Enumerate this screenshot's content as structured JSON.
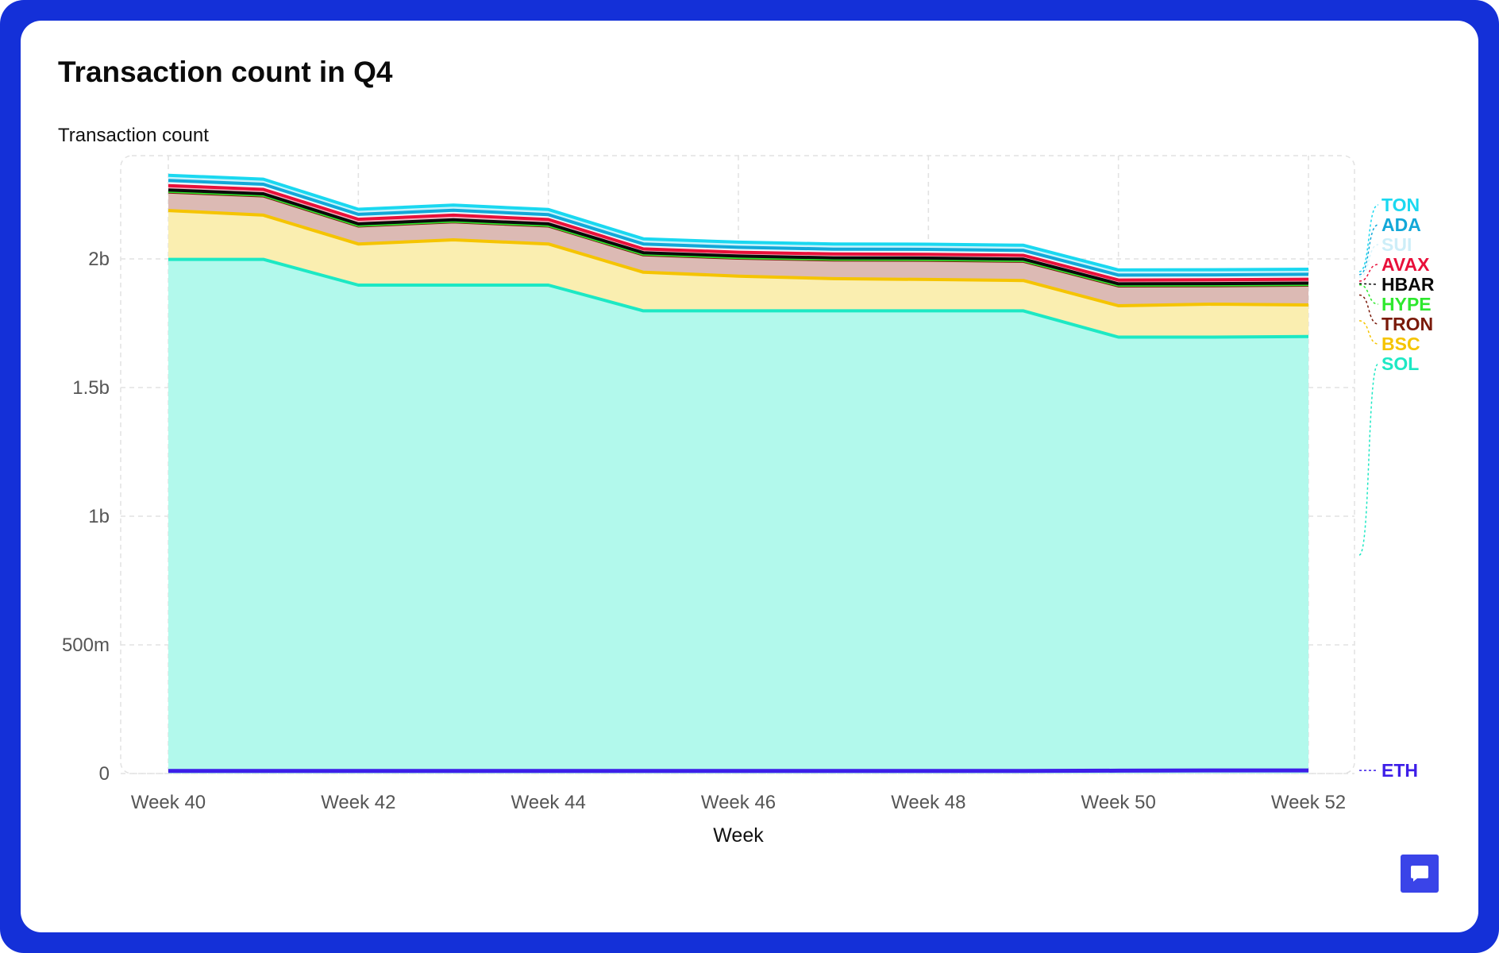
{
  "page": {
    "title": "Transaction count in Q4"
  },
  "chart_data": {
    "type": "area",
    "stacked": true,
    "title": "Transaction count in Q4",
    "xlabel": "Week",
    "ylabel": "Transaction count",
    "x": [
      "Week 40",
      "Week 41",
      "Week 42",
      "Week 43",
      "Week 44",
      "Week 45",
      "Week 46",
      "Week 47",
      "Week 48",
      "Week 49",
      "Week 50",
      "Week 51",
      "Week 52"
    ],
    "xticks": [
      "Week 40",
      "Week 42",
      "Week 44",
      "Week 46",
      "Week 48",
      "Week 50",
      "Week 52"
    ],
    "yticks": [
      {
        "value": 0,
        "label": "0"
      },
      {
        "value": 500000000,
        "label": "500m"
      },
      {
        "value": 1000000000,
        "label": "1b"
      },
      {
        "value": 1500000000,
        "label": "1.5b"
      },
      {
        "value": 2000000000,
        "label": "2b"
      }
    ],
    "ylim": [
      0,
      2400000000
    ],
    "grid": true,
    "legend": "right, labels at series ends",
    "series": [
      {
        "name": "ETH",
        "color": "#3d1ee8",
        "fill": "none",
        "values": [
          10000000,
          10000000,
          10000000,
          10000000,
          10000000,
          10000000,
          10000000,
          10000000,
          10000000,
          10000000,
          11000000,
          12000000,
          12000000
        ]
      },
      {
        "name": "SOL",
        "color": "#1de8c4",
        "fill": "#b2f9ec",
        "values": [
          1998000000,
          1998000000,
          1898000000,
          1898000000,
          1898000000,
          1798000000,
          1798000000,
          1798000000,
          1798000000,
          1798000000,
          1696000000,
          1696000000,
          1698000000
        ]
      },
      {
        "name": "BSC",
        "color": "#f5c400",
        "fill": "#faeeb0",
        "values": [
          190000000,
          172000000,
          160000000,
          176000000,
          160000000,
          150000000,
          135000000,
          125000000,
          122000000,
          118000000,
          122000000,
          128000000,
          123000000
        ]
      },
      {
        "name": "TRON",
        "color": "#7a1a0a",
        "fill": "#dcbab4",
        "values": [
          72000000,
          75000000,
          70000000,
          70000000,
          70000000,
          68000000,
          70000000,
          73000000,
          75000000,
          75000000,
          77000000,
          72000000,
          77000000
        ]
      },
      {
        "name": "HYPE",
        "color": "#2ee82e",
        "fill": "#cdeec9",
        "values": [
          3000000,
          3000000,
          3000000,
          3000000,
          3000000,
          3000000,
          3000000,
          3000000,
          3000000,
          3000000,
          3000000,
          3000000,
          3000000
        ]
      },
      {
        "name": "HBAR",
        "color": "#0a0a0a",
        "fill": "#8f8f8f",
        "values": [
          5000000,
          5000000,
          5000000,
          5000000,
          5000000,
          5000000,
          5000000,
          5000000,
          5000000,
          5000000,
          5000000,
          5000000,
          5000000
        ]
      },
      {
        "name": "AVAX",
        "color": "#e8103a",
        "fill": "#f4b7c2",
        "values": [
          17000000,
          17000000,
          18000000,
          18000000,
          17000000,
          15000000,
          15000000,
          15000000,
          15000000,
          15000000,
          15000000,
          15000000,
          15000000
        ]
      },
      {
        "name": "SUI",
        "color": "#d8f4fb",
        "fill": "#eefbfe",
        "values": [
          18000000,
          18000000,
          17000000,
          17000000,
          17000000,
          17000000,
          17000000,
          17000000,
          17000000,
          17000000,
          17000000,
          17000000,
          17000000
        ]
      },
      {
        "name": "ADA",
        "color": "#12a8d8",
        "fill": "#cbeef9",
        "values": [
          2000000,
          2000000,
          2000000,
          2000000,
          2000000,
          2000000,
          2000000,
          2000000,
          2000000,
          2000000,
          2000000,
          2000000,
          2000000
        ]
      },
      {
        "name": "TON",
        "color": "#1ad8f0",
        "fill": "#c7f3fb",
        "values": [
          20000000,
          20000000,
          20000000,
          20000000,
          20000000,
          20000000,
          20000000,
          20000000,
          20000000,
          20000000,
          20000000,
          20000000,
          20000000
        ]
      }
    ]
  },
  "icons": {
    "corner_button": "comment-icon"
  },
  "colors": {
    "frame": "#1430d8",
    "button": "#3a44e8"
  }
}
